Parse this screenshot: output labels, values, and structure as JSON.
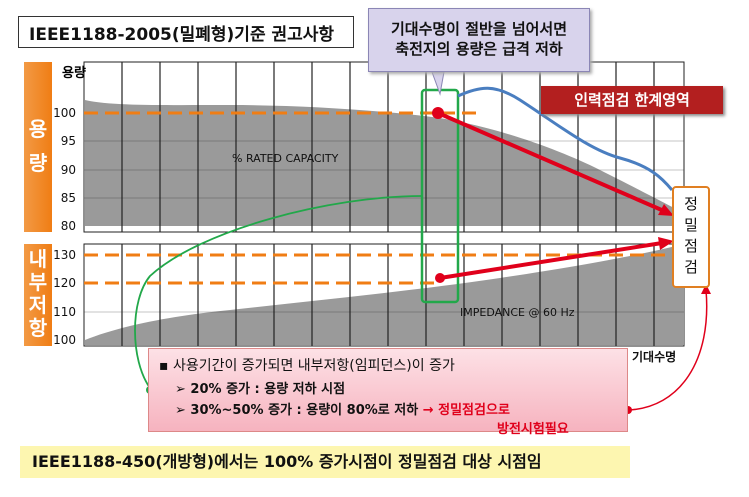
{
  "title": "IEEE1188-2005(밀폐형)기준 권고사항",
  "callout": {
    "line1": "기대수명이 절반을 넘어서면",
    "line2": "축전지의 용량은 급격 저하"
  },
  "limit_badge": "인력점검 한계영역",
  "side_capacity": [
    "용",
    "량"
  ],
  "side_resistance": [
    "내",
    "부",
    "저",
    "항"
  ],
  "y_axis_title": "용량",
  "capacity_ticks": [
    "100",
    "95",
    "90",
    "85",
    "80"
  ],
  "impedance_ticks": [
    "130",
    "120",
    "110",
    "100"
  ],
  "capacity_area_label": "% RATED CAPACITY",
  "impedance_area_label": "IMPEDANCE @ 60 Hz",
  "x_axis_title": "기대수명",
  "precision_box": [
    "정",
    "밀",
    "점",
    "검"
  ],
  "info": {
    "bullet": "사용기간이 증가되면 내부저항(임피던스)이 증가",
    "item1": "20% 증가 : 용량 저하 시점",
    "item2_prefix": "30%~50% 증가 : 용량이 80%로 저하",
    "item2_arrow": "→",
    "item2_red1": "정밀점검으로",
    "item2_red2": "방전시험필요"
  },
  "footer": "IEEE1188-450(개방형)에서는 100% 증가시점이 정밀점검 대상 시점임",
  "colors": {
    "orange": "#f07d14",
    "red": "#e0001b",
    "green": "#22a84a",
    "blue": "#4a7ec0",
    "badge": "#b31f1f"
  }
}
